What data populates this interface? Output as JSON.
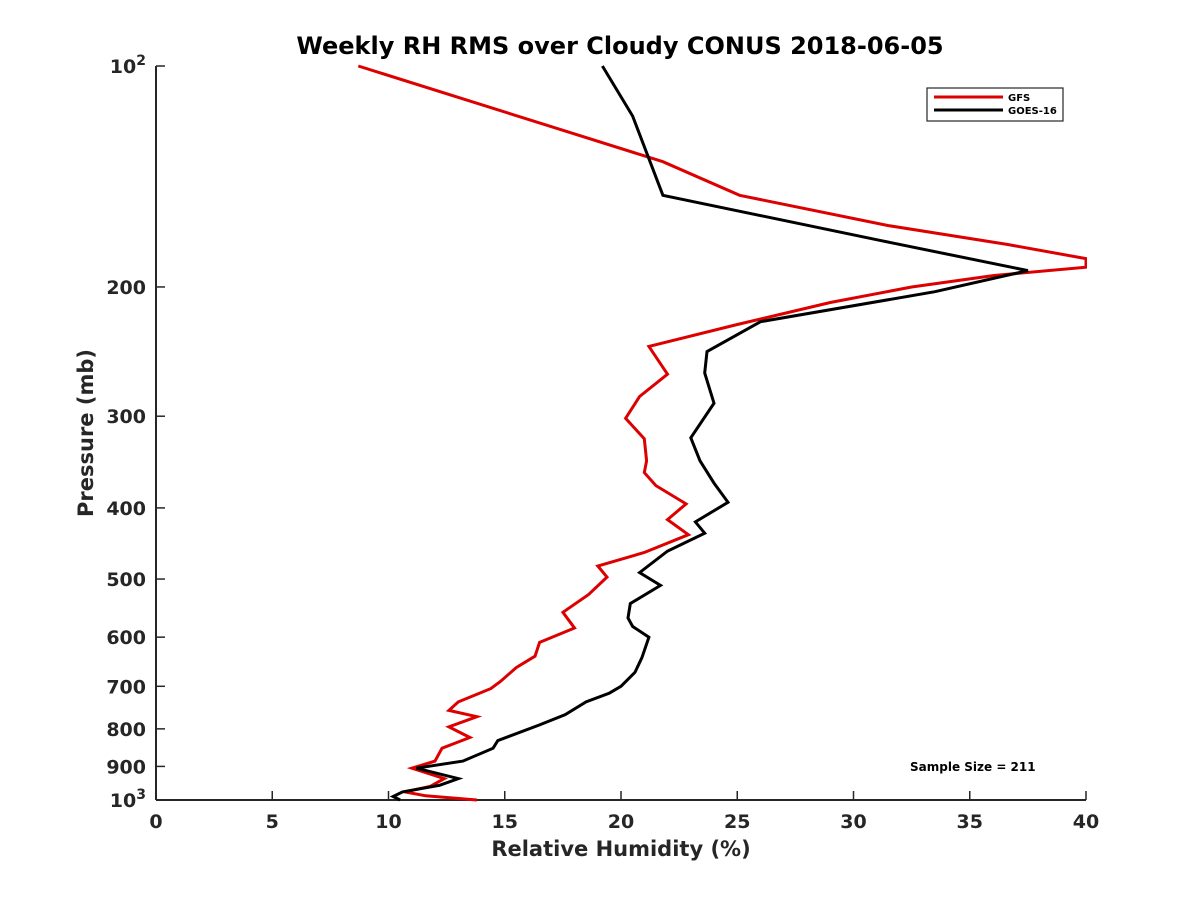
{
  "chart_data": {
    "type": "line",
    "title": "Weekly RH RMS over Cloudy CONUS 2018-06-05",
    "xlabel": "Relative Humidity (%)",
    "ylabel": "Pressure (mb)",
    "xlim": [
      0,
      40
    ],
    "ylim": [
      100,
      1000
    ],
    "y_scale": "log",
    "y_reversed": true,
    "grid": false,
    "legend_position": "top-right",
    "x_ticks": [
      0,
      5,
      10,
      15,
      20,
      25,
      30,
      35,
      40
    ],
    "y_ticks": [
      {
        "value": 100,
        "label": "10",
        "sup": "2"
      },
      {
        "value": 200,
        "label": "200"
      },
      {
        "value": 300,
        "label": "300"
      },
      {
        "value": 400,
        "label": "400"
      },
      {
        "value": 500,
        "label": "500"
      },
      {
        "value": 600,
        "label": "600"
      },
      {
        "value": 700,
        "label": "700"
      },
      {
        "value": 800,
        "label": "800"
      },
      {
        "value": 900,
        "label": "900"
      },
      {
        "value": 1000,
        "label": "10",
        "sup": "3"
      }
    ],
    "annotation": "Sample Size = 211",
    "series": [
      {
        "name": "GFS",
        "color": "#dd0000",
        "points": [
          [
            8.7,
            100
          ],
          [
            21.8,
            135
          ],
          [
            25.1,
            150
          ],
          [
            31.5,
            165
          ],
          [
            36.6,
            175
          ],
          [
            40.0,
            183
          ],
          [
            40.0,
            188
          ],
          [
            36.0,
            193
          ],
          [
            32.5,
            200
          ],
          [
            29.0,
            210
          ],
          [
            25.0,
            225
          ],
          [
            21.2,
            241
          ],
          [
            22.0,
            263
          ],
          [
            20.8,
            282
          ],
          [
            20.2,
            302
          ],
          [
            21.0,
            322
          ],
          [
            21.1,
            345
          ],
          [
            21.0,
            358
          ],
          [
            21.5,
            373
          ],
          [
            22.8,
            395
          ],
          [
            22.0,
            415
          ],
          [
            22.9,
            435
          ],
          [
            21.0,
            460
          ],
          [
            19.0,
            480
          ],
          [
            19.4,
            497
          ],
          [
            18.6,
            525
          ],
          [
            17.5,
            555
          ],
          [
            18.0,
            583
          ],
          [
            16.5,
            610
          ],
          [
            16.3,
            637
          ],
          [
            15.5,
            660
          ],
          [
            14.8,
            690
          ],
          [
            14.4,
            705
          ],
          [
            13.0,
            735
          ],
          [
            12.6,
            755
          ],
          [
            13.8,
            770
          ],
          [
            12.6,
            795
          ],
          [
            13.5,
            822
          ],
          [
            12.3,
            850
          ],
          [
            12.0,
            885
          ],
          [
            11.0,
            905
          ],
          [
            12.4,
            935
          ],
          [
            11.8,
            958
          ],
          [
            10.7,
            975
          ],
          [
            11.6,
            987
          ],
          [
            13.8,
            1000
          ]
        ]
      },
      {
        "name": "GOES-16",
        "color": "#000000",
        "points": [
          [
            19.2,
            100
          ],
          [
            20.5,
            117
          ],
          [
            21.8,
            150
          ],
          [
            31.2,
            173
          ],
          [
            37.5,
            190
          ],
          [
            33.5,
            203
          ],
          [
            26.0,
            223
          ],
          [
            23.7,
            245
          ],
          [
            23.6,
            262
          ],
          [
            24.0,
            288
          ],
          [
            23.0,
            321
          ],
          [
            23.4,
            345
          ],
          [
            24.0,
            370
          ],
          [
            24.6,
            393
          ],
          [
            23.2,
            418
          ],
          [
            23.6,
            433
          ],
          [
            22.0,
            458
          ],
          [
            20.8,
            490
          ],
          [
            21.7,
            510
          ],
          [
            20.4,
            540
          ],
          [
            20.3,
            565
          ],
          [
            20.5,
            580
          ],
          [
            21.2,
            600
          ],
          [
            20.9,
            640
          ],
          [
            20.6,
            670
          ],
          [
            20.0,
            700
          ],
          [
            19.5,
            715
          ],
          [
            18.5,
            735
          ],
          [
            17.6,
            765
          ],
          [
            16.5,
            790
          ],
          [
            14.7,
            830
          ],
          [
            14.5,
            850
          ],
          [
            13.2,
            885
          ],
          [
            11.2,
            905
          ],
          [
            13.0,
            935
          ],
          [
            12.2,
            955
          ],
          [
            10.6,
            975
          ],
          [
            10.2,
            989
          ],
          [
            10.5,
            1000
          ]
        ]
      }
    ]
  }
}
